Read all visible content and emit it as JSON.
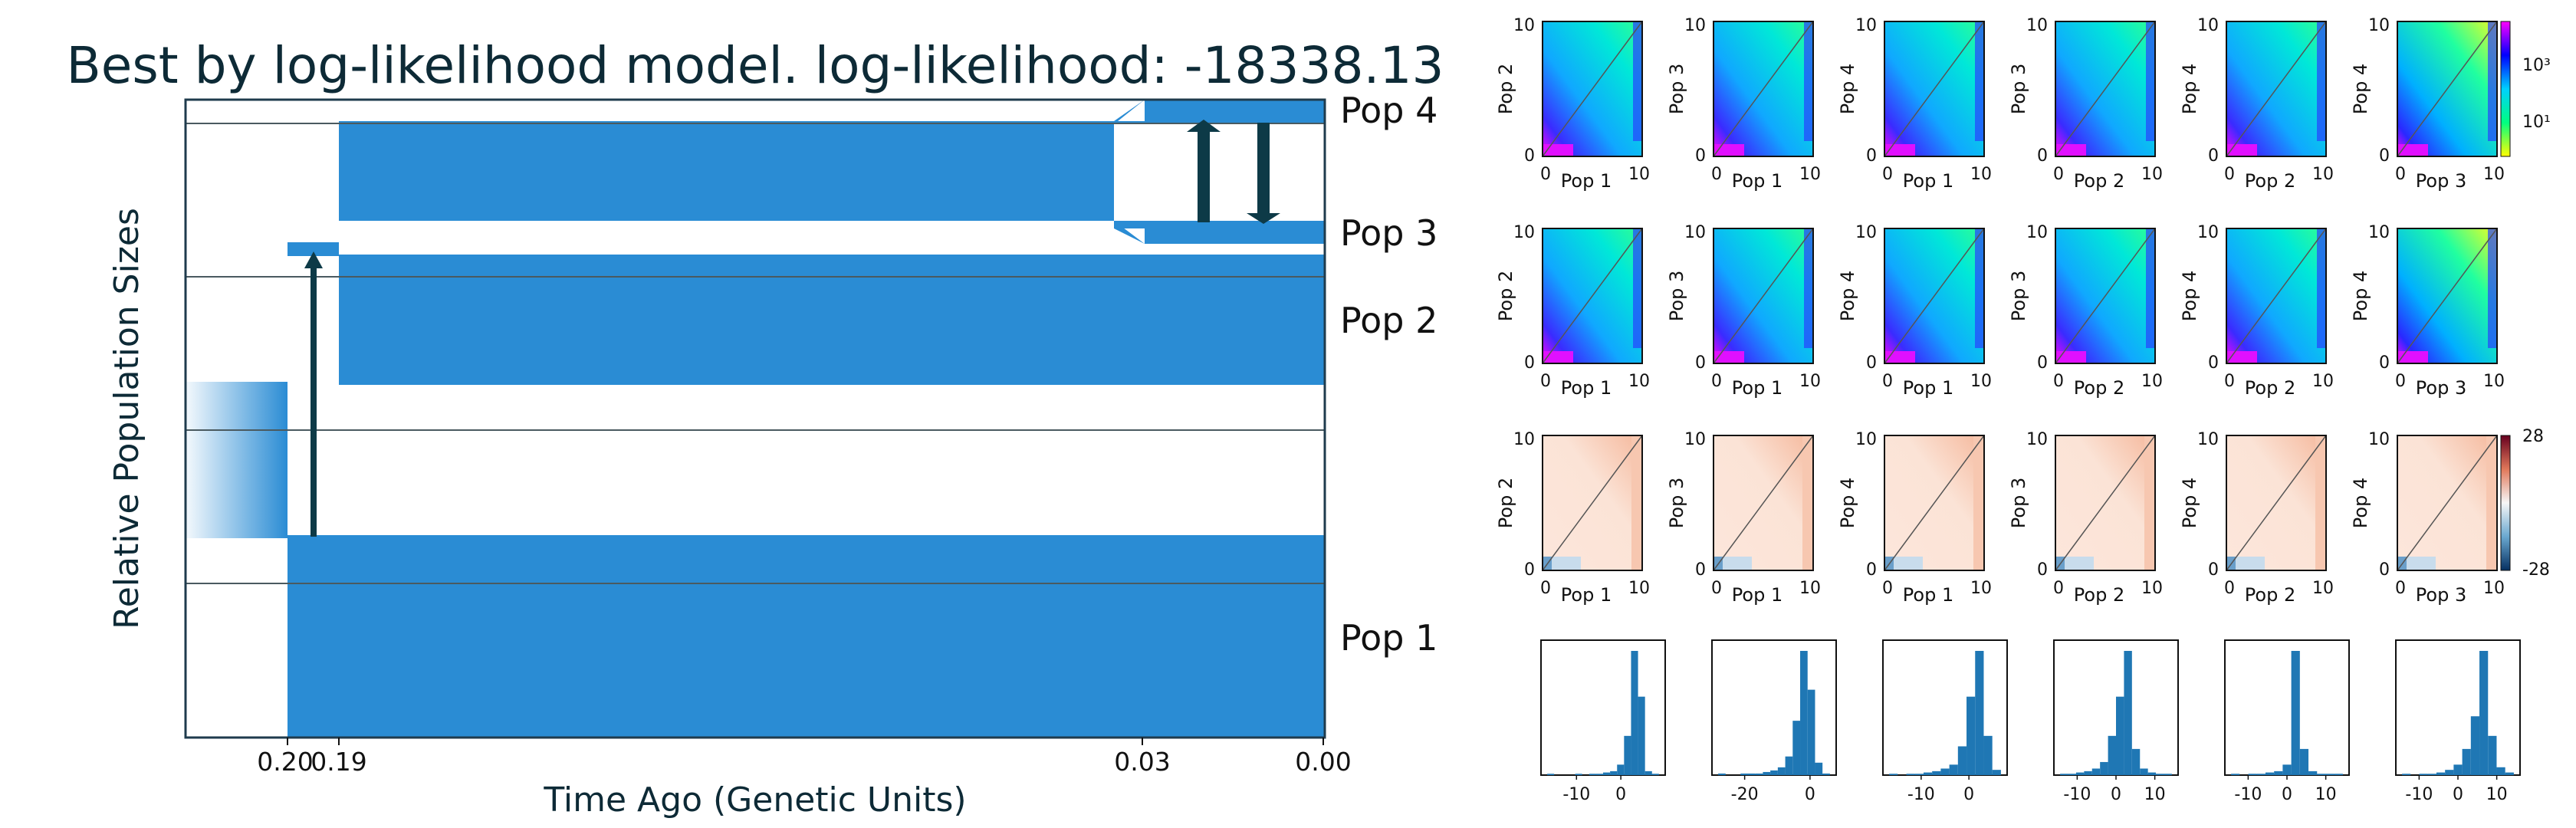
{
  "figure": {
    "title": "Best by log-likelihood model. log-likelihood: -18338.13"
  },
  "colors": {
    "pop_fill": "#2a8cd4",
    "arrow": "#0d3a47",
    "frame": "#1f3b4d",
    "title_text": "#0d2a36",
    "residual_pos": "#f1a07e",
    "residual_neg": "#2b77b4",
    "hist_bar": "#1f77b4"
  },
  "chart_data": [
    {
      "type": "area",
      "name": "demographic-model",
      "ylabel": "Relative Population Sizes",
      "xlabel": "Time Ago (Genetic Units)",
      "x_ticks": [
        "0.20",
        "0.19",
        "0.03",
        "0.00"
      ],
      "populations": [
        "Pop 1",
        "Pop 2",
        "Pop 3",
        "Pop 4"
      ],
      "migrations": [
        {
          "time": "0.195",
          "direction": "up"
        },
        {
          "time": "0.015",
          "direction": "up"
        },
        {
          "time": "0.007",
          "direction": "down"
        }
      ]
    },
    {
      "type": "heatmap",
      "name": "model-sfs",
      "panels": [
        {
          "x": "Pop 1",
          "y": "Pop 2"
        },
        {
          "x": "Pop 1",
          "y": "Pop 3"
        },
        {
          "x": "Pop 1",
          "y": "Pop 4"
        },
        {
          "x": "Pop 2",
          "y": "Pop 3"
        },
        {
          "x": "Pop 2",
          "y": "Pop 4"
        },
        {
          "x": "Pop 3",
          "y": "Pop 4"
        }
      ],
      "ticks": {
        "min": "0",
        "max": "10"
      },
      "colorbar_ticks": [
        "10³",
        "10¹"
      ]
    },
    {
      "type": "heatmap",
      "name": "data-sfs",
      "panels": [
        {
          "x": "Pop 1",
          "y": "Pop 2"
        },
        {
          "x": "Pop 1",
          "y": "Pop 3"
        },
        {
          "x": "Pop 1",
          "y": "Pop 4"
        },
        {
          "x": "Pop 2",
          "y": "Pop 3"
        },
        {
          "x": "Pop 2",
          "y": "Pop 4"
        },
        {
          "x": "Pop 3",
          "y": "Pop 4"
        }
      ],
      "ticks": {
        "min": "0",
        "max": "10"
      }
    },
    {
      "type": "heatmap",
      "name": "residuals",
      "panels": [
        {
          "x": "Pop 1",
          "y": "Pop 2"
        },
        {
          "x": "Pop 1",
          "y": "Pop 3"
        },
        {
          "x": "Pop 1",
          "y": "Pop 4"
        },
        {
          "x": "Pop 2",
          "y": "Pop 3"
        },
        {
          "x": "Pop 2",
          "y": "Pop 4"
        },
        {
          "x": "Pop 3",
          "y": "Pop 4"
        }
      ],
      "ticks": {
        "min": "0",
        "max": "10"
      },
      "colorbar_ticks": [
        "28",
        "-28"
      ]
    },
    {
      "type": "bar",
      "name": "residual-histograms",
      "panels": [
        {
          "xlim": [
            -18,
            10
          ],
          "ticks": [
            "-10",
            "0"
          ],
          "values": [
            1,
            0,
            0,
            0,
            1,
            0,
            1,
            1,
            2,
            3,
            8,
            30,
            95,
            60,
            3,
            1
          ]
        },
        {
          "xlim": [
            -30,
            8
          ],
          "ticks": [
            "-20",
            "0"
          ],
          "values": [
            1,
            0,
            0,
            1,
            1,
            1,
            2,
            3,
            5,
            12,
            35,
            80,
            55,
            8,
            1
          ]
        },
        {
          "xlim": [
            -18,
            8
          ],
          "ticks": [
            "-10",
            "0"
          ],
          "values": [
            1,
            0,
            1,
            1,
            2,
            3,
            5,
            8,
            22,
            60,
            95,
            30,
            4
          ]
        },
        {
          "xlim": [
            -16,
            16
          ],
          "ticks": [
            "-10",
            "0",
            "10"
          ],
          "values": [
            1,
            1,
            2,
            3,
            5,
            10,
            30,
            60,
            95,
            20,
            5,
            2,
            1,
            1
          ]
        },
        {
          "xlim": [
            -16,
            16
          ],
          "ticks": [
            "-10",
            "0",
            "10"
          ],
          "values": [
            1,
            0,
            1,
            1,
            2,
            3,
            8,
            95,
            20,
            3,
            1,
            1,
            1
          ]
        },
        {
          "xlim": [
            -16,
            16
          ],
          "ticks": [
            "-10",
            "0",
            "10"
          ],
          "values": [
            1,
            0,
            1,
            1,
            2,
            4,
            8,
            20,
            45,
            95,
            30,
            6,
            2
          ]
        }
      ]
    }
  ]
}
